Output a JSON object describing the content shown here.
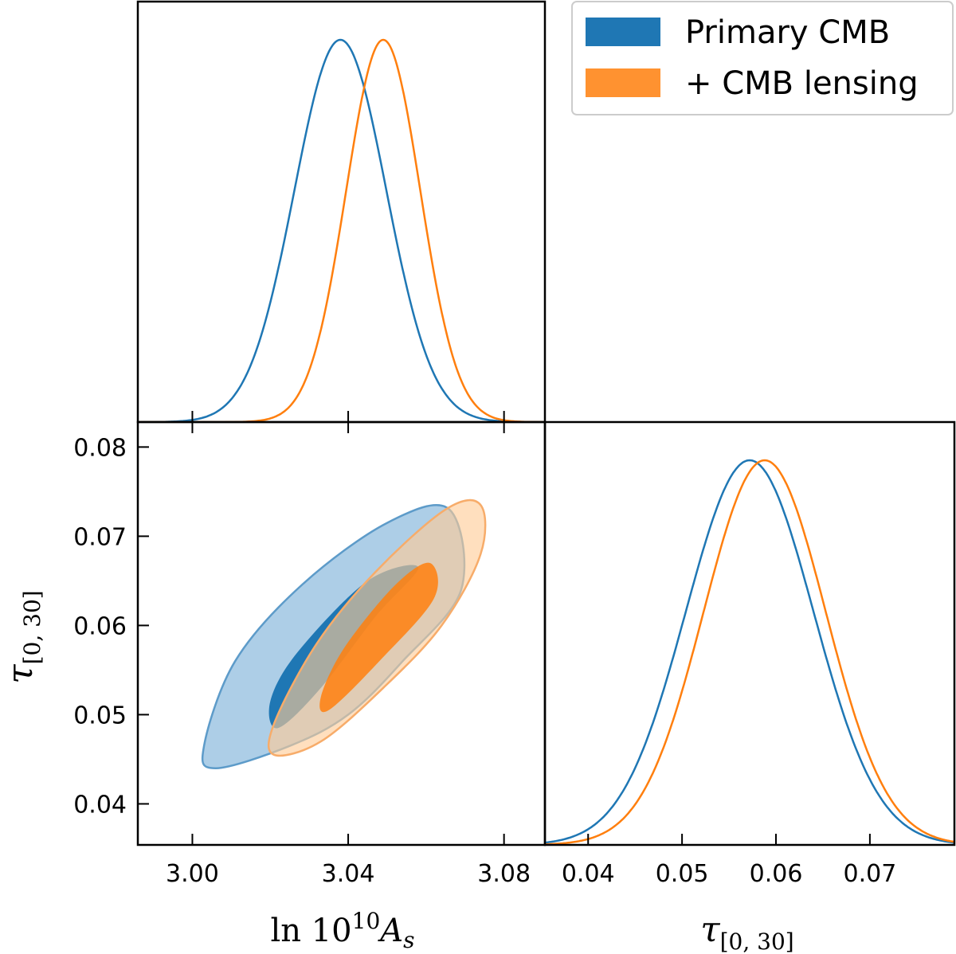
{
  "chart_data": {
    "type": "triangle-plot",
    "series": [
      {
        "name": "Primary CMB",
        "color": "#1f77b4",
        "lnAs": {
          "mean": 3.038,
          "sd": 0.0118
        },
        "tau": {
          "mean": 0.0572,
          "sd": 0.0068
        },
        "contour_inner": [
          [
            3.022,
            0.0485
          ],
          [
            3.033,
            0.053
          ],
          [
            3.047,
            0.061
          ],
          [
            3.058,
            0.0665
          ],
          [
            3.045,
            0.065
          ],
          [
            3.027,
            0.057
          ],
          [
            3.02,
            0.0515
          ]
        ],
        "contour_outer": [
          [
            3.006,
            0.044
          ],
          [
            3.025,
            0.0465
          ],
          [
            3.04,
            0.05
          ],
          [
            3.054,
            0.056
          ],
          [
            3.069,
            0.064
          ],
          [
            3.066,
            0.073
          ],
          [
            3.05,
            0.0715
          ],
          [
            3.028,
            0.0645
          ],
          [
            3.011,
            0.056
          ],
          [
            3.003,
            0.0465
          ]
        ]
      },
      {
        "name": "+ CMB lensing",
        "color": "#ff7f0e",
        "lnAs": {
          "mean": 3.049,
          "sd": 0.0095
        },
        "tau": {
          "mean": 0.0588,
          "sd": 0.0065
        },
        "contour_inner": [
          [
            3.035,
            0.0505
          ],
          [
            3.048,
            0.056
          ],
          [
            3.062,
            0.063
          ],
          [
            3.061,
            0.067
          ],
          [
            3.052,
            0.0645
          ],
          [
            3.039,
            0.0575
          ],
          [
            3.033,
            0.052
          ]
        ],
        "contour_outer": [
          [
            3.021,
            0.0455
          ],
          [
            3.033,
            0.047
          ],
          [
            3.049,
            0.053
          ],
          [
            3.064,
            0.06
          ],
          [
            3.074,
            0.068
          ],
          [
            3.074,
            0.0735
          ],
          [
            3.065,
            0.073
          ],
          [
            3.047,
            0.066
          ],
          [
            3.032,
            0.058
          ],
          [
            3.021,
            0.049
          ]
        ]
      }
    ],
    "panels": {
      "top_left": {
        "xlim": [
          2.986,
          3.0905
        ],
        "ticks": [
          3.0,
          3.04,
          3.08
        ]
      },
      "bottom_left": {
        "xlim": [
          2.986,
          3.0905
        ],
        "ylim": [
          0.0354,
          0.0828
        ],
        "xticks": [
          "3.00",
          "3.04",
          "3.08"
        ],
        "yticks": [
          "0.04",
          "0.05",
          "0.06",
          "0.07",
          "0.08"
        ],
        "xlabel": "ln 10",
        "xlabel_sup": "10",
        "xlabel_var": "A",
        "xlabel_sub": "s",
        "ylabel": "τ",
        "ylabel_sub": "[0, 30]"
      },
      "bottom_right": {
        "xlim": [
          0.0354,
          0.079
        ],
        "xticks": [
          "0.04",
          "0.05",
          "0.06",
          "0.07"
        ],
        "xlabel": "τ",
        "xlabel_sub": "[0, 30]"
      }
    },
    "legend": {
      "position": "top-right",
      "entries": [
        "Primary CMB",
        "+ CMB lensing"
      ]
    }
  }
}
